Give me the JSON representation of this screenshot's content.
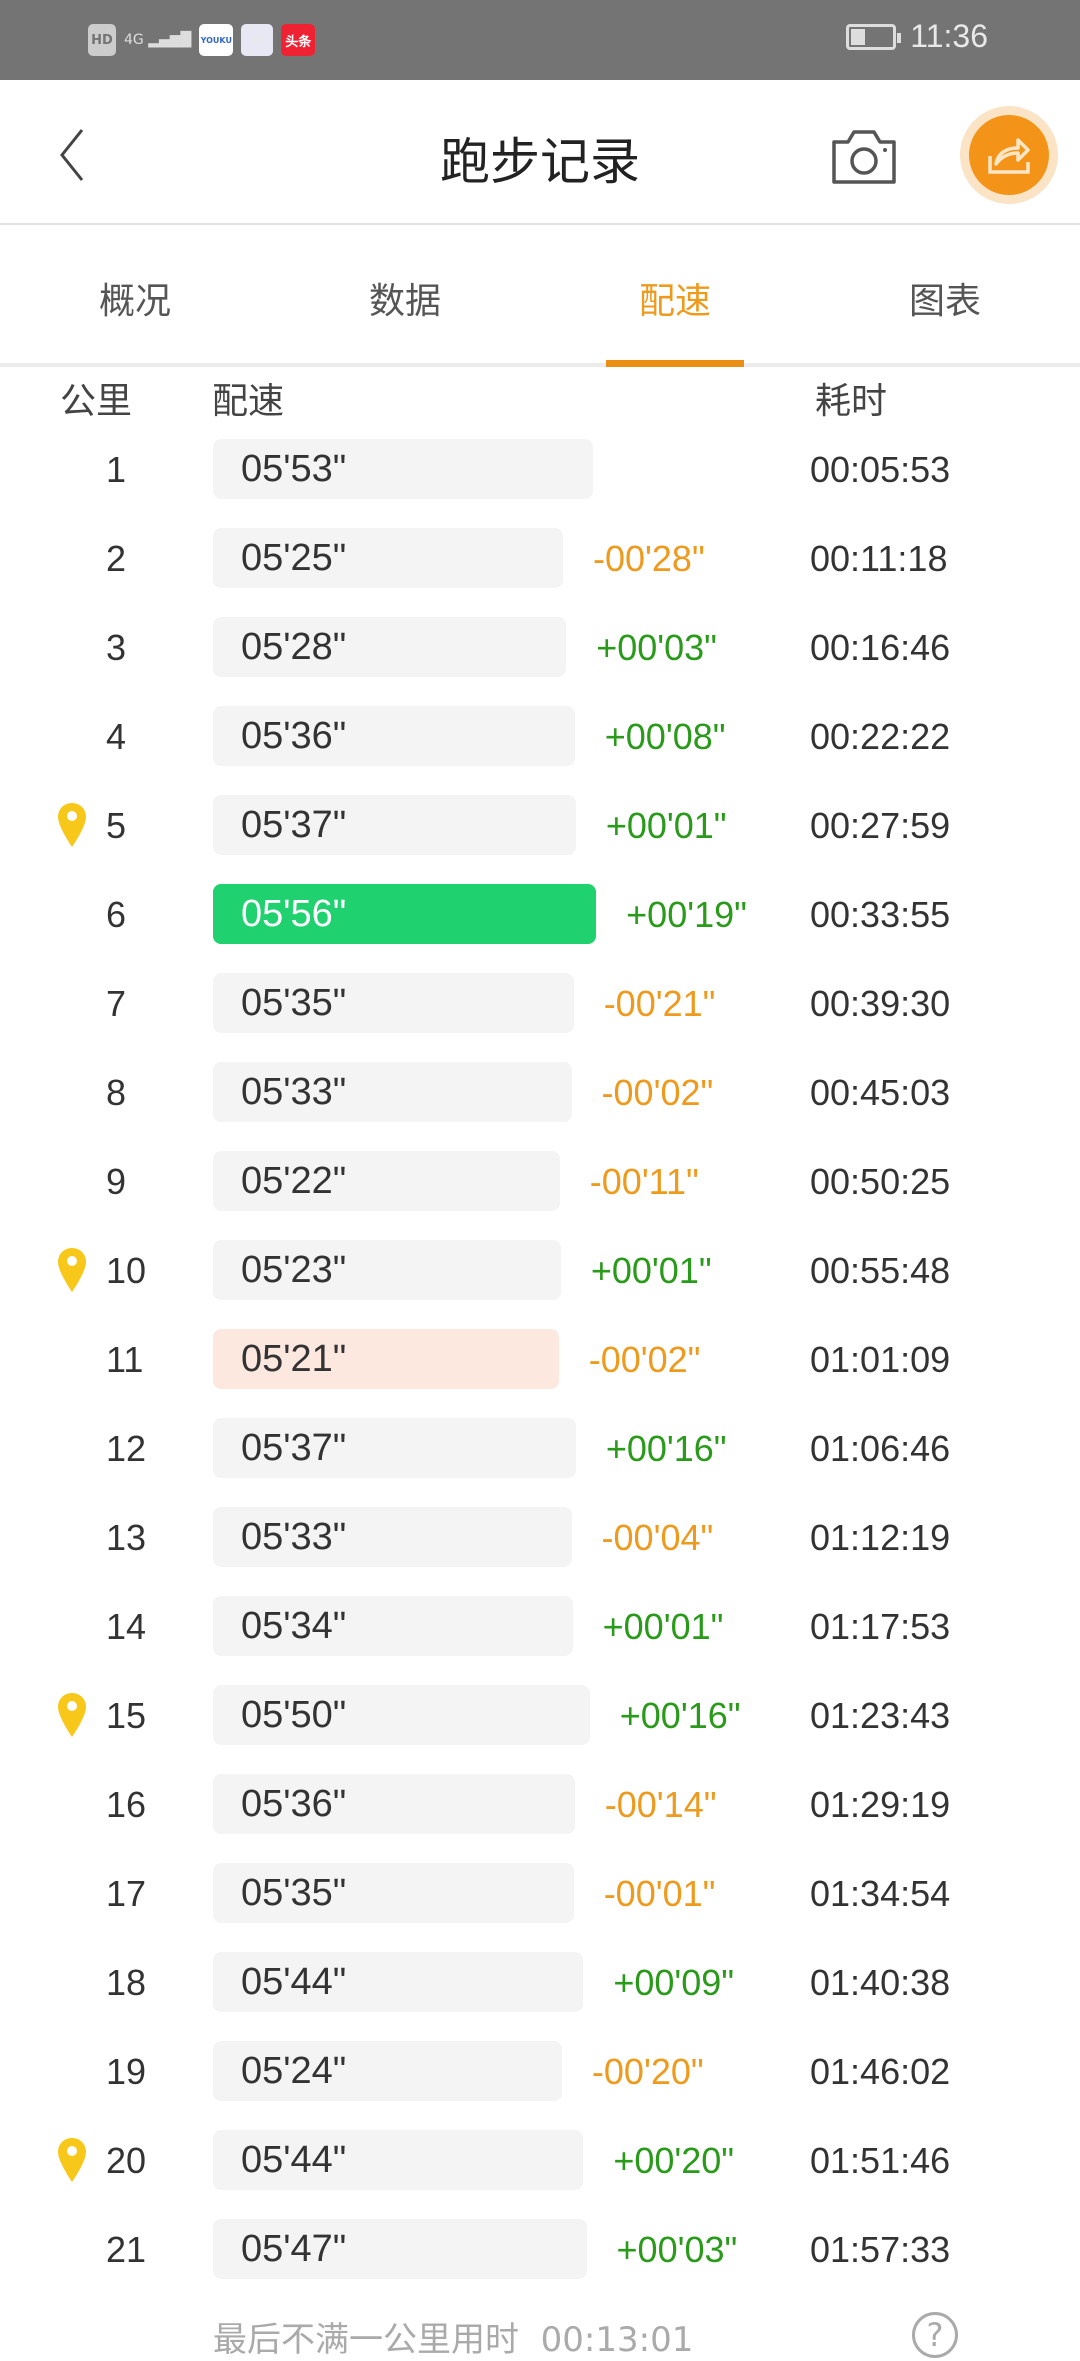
{
  "status_bar": {
    "network": "4G",
    "hd": "HD",
    "apps": [
      "YOUKU",
      "photos",
      "头条"
    ],
    "time": "11:36"
  },
  "header": {
    "title": "跑步记录",
    "back_icon": "chevron-left-icon",
    "camera_icon": "camera-icon",
    "share_icon": "share-icon"
  },
  "tabs": [
    {
      "label": "概况"
    },
    {
      "label": "数据"
    },
    {
      "label": "配速",
      "active": true
    },
    {
      "label": "图表"
    }
  ],
  "columns": {
    "km": "公里",
    "pace": "配速",
    "time": "耗时"
  },
  "colors": {
    "accent": "#ee9a1d",
    "faster": "#ee9a1d",
    "slower": "#2a9a1a",
    "slowest_bar": "#1fd16f",
    "fastest_bar": "#fde8df"
  },
  "rows": [
    {
      "km": "1",
      "pace": "05'53\"",
      "sec": 353,
      "delta": "",
      "time": "00:05:53"
    },
    {
      "km": "2",
      "pace": "05'25\"",
      "sec": 325,
      "delta": "-00'28\"",
      "time": "00:11:18"
    },
    {
      "km": "3",
      "pace": "05'28\"",
      "sec": 328,
      "delta": "+00'03\"",
      "time": "00:16:46"
    },
    {
      "km": "4",
      "pace": "05'36\"",
      "sec": 336,
      "delta": "+00'08\"",
      "time": "00:22:22"
    },
    {
      "km": "5",
      "pace": "05'37\"",
      "sec": 337,
      "delta": "+00'01\"",
      "time": "00:27:59",
      "pin": true
    },
    {
      "km": "6",
      "pace": "05'56\"",
      "sec": 356,
      "delta": "+00'19\"",
      "time": "00:33:55",
      "highlight": "slowest"
    },
    {
      "km": "7",
      "pace": "05'35\"",
      "sec": 335,
      "delta": "-00'21\"",
      "time": "00:39:30"
    },
    {
      "km": "8",
      "pace": "05'33\"",
      "sec": 333,
      "delta": "-00'02\"",
      "time": "00:45:03"
    },
    {
      "km": "9",
      "pace": "05'22\"",
      "sec": 322,
      "delta": "-00'11\"",
      "time": "00:50:25"
    },
    {
      "km": "10",
      "pace": "05'23\"",
      "sec": 323,
      "delta": "+00'01\"",
      "time": "00:55:48",
      "pin": true
    },
    {
      "km": "11",
      "pace": "05'21\"",
      "sec": 321,
      "delta": "-00'02\"",
      "time": "01:01:09",
      "highlight": "fastest"
    },
    {
      "km": "12",
      "pace": "05'37\"",
      "sec": 337,
      "delta": "+00'16\"",
      "time": "01:06:46"
    },
    {
      "km": "13",
      "pace": "05'33\"",
      "sec": 333,
      "delta": "-00'04\"",
      "time": "01:12:19"
    },
    {
      "km": "14",
      "pace": "05'34\"",
      "sec": 334,
      "delta": "+00'01\"",
      "time": "01:17:53"
    },
    {
      "km": "15",
      "pace": "05'50\"",
      "sec": 350,
      "delta": "+00'16\"",
      "time": "01:23:43",
      "pin": true
    },
    {
      "km": "16",
      "pace": "05'36\"",
      "sec": 336,
      "delta": "-00'14\"",
      "time": "01:29:19"
    },
    {
      "km": "17",
      "pace": "05'35\"",
      "sec": 335,
      "delta": "-00'01\"",
      "time": "01:34:54"
    },
    {
      "km": "18",
      "pace": "05'44\"",
      "sec": 344,
      "delta": "+00'09\"",
      "time": "01:40:38"
    },
    {
      "km": "19",
      "pace": "05'24\"",
      "sec": 324,
      "delta": "-00'20\"",
      "time": "01:46:02"
    },
    {
      "km": "20",
      "pace": "05'44\"",
      "sec": 344,
      "delta": "+00'20\"",
      "time": "01:51:46",
      "pin": true
    },
    {
      "km": "21",
      "pace": "05'47\"",
      "sec": 347,
      "delta": "+00'03\"",
      "time": "01:57:33"
    }
  ],
  "footer": {
    "text": "最后不满一公里用时",
    "time": "00:13:01",
    "help_icon": "?"
  }
}
